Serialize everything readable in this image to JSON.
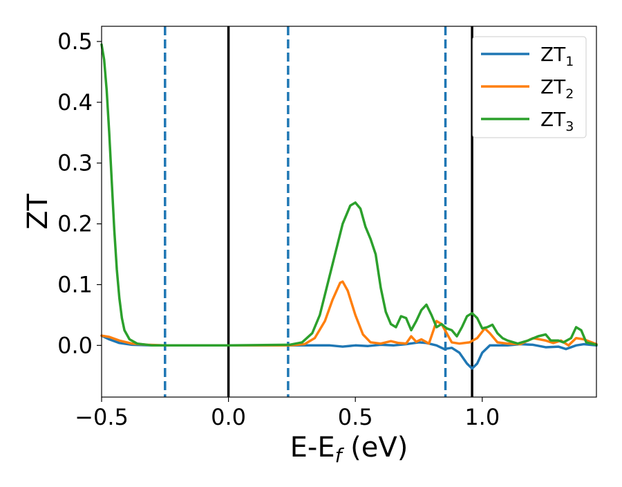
{
  "chart_data": {
    "type": "line",
    "title": "",
    "xlabel": "E-E",
    "xlabel_sub": "f",
    "xlabel_unit": " (eV)",
    "ylabel": "ZT",
    "xlim": [
      -0.5,
      1.45
    ],
    "ylim": [
      -0.085,
      0.525
    ],
    "xticks": [
      -0.5,
      0.0,
      0.5,
      1.0
    ],
    "xtick_labels": [
      "−0.5",
      "0.0",
      "0.5",
      "1.0"
    ],
    "yticks": [
      0.0,
      0.1,
      0.2,
      0.3,
      0.4,
      0.5
    ],
    "ytick_labels": [
      "0.0",
      "0.1",
      "0.2",
      "0.3",
      "0.4",
      "0.5"
    ],
    "grid": false,
    "legend_position": "top-right",
    "vertical_lines": [
      {
        "x": -0.25,
        "style": "dashed",
        "color": "#1f77b4"
      },
      {
        "x": 0.0,
        "style": "solid",
        "color": "#000000"
      },
      {
        "x": 0.235,
        "style": "dashed",
        "color": "#1f77b4"
      },
      {
        "x": 0.855,
        "style": "dashed",
        "color": "#1f77b4"
      },
      {
        "x": 0.96,
        "style": "solid",
        "color": "#000000"
      }
    ],
    "series": [
      {
        "name": "ZT",
        "name_sub": "1",
        "color": "#1f77b4",
        "points": [
          [
            -0.5,
            0.016
          ],
          [
            -0.47,
            0.01
          ],
          [
            -0.43,
            0.004
          ],
          [
            -0.38,
            0.001
          ],
          [
            -0.3,
            0.0
          ],
          [
            0.0,
            0.0
          ],
          [
            0.4,
            0.0
          ],
          [
            0.45,
            -0.002
          ],
          [
            0.5,
            0.0
          ],
          [
            0.55,
            -0.001
          ],
          [
            0.6,
            0.001
          ],
          [
            0.65,
            0.0
          ],
          [
            0.7,
            0.002
          ],
          [
            0.75,
            0.005
          ],
          [
            0.78,
            0.004
          ],
          [
            0.82,
            0.0
          ],
          [
            0.85,
            -0.006
          ],
          [
            0.88,
            -0.004
          ],
          [
            0.91,
            -0.012
          ],
          [
            0.94,
            -0.03
          ],
          [
            0.96,
            -0.038
          ],
          [
            0.98,
            -0.03
          ],
          [
            1.0,
            -0.012
          ],
          [
            1.03,
            0.0
          ],
          [
            1.1,
            0.0
          ],
          [
            1.15,
            0.002
          ],
          [
            1.2,
            0.001
          ],
          [
            1.25,
            -0.003
          ],
          [
            1.3,
            -0.002
          ],
          [
            1.33,
            -0.006
          ],
          [
            1.37,
            0.0
          ],
          [
            1.4,
            0.002
          ],
          [
            1.45,
            0.0
          ]
        ]
      },
      {
        "name": "ZT",
        "name_sub": "2",
        "color": "#ff7f0e",
        "points": [
          [
            -0.5,
            0.016
          ],
          [
            -0.47,
            0.014
          ],
          [
            -0.43,
            0.008
          ],
          [
            -0.38,
            0.003
          ],
          [
            -0.32,
            0.001
          ],
          [
            -0.25,
            0.0
          ],
          [
            0.0,
            0.0
          ],
          [
            0.24,
            0.0
          ],
          [
            0.3,
            0.002
          ],
          [
            0.34,
            0.012
          ],
          [
            0.38,
            0.04
          ],
          [
            0.41,
            0.075
          ],
          [
            0.44,
            0.103
          ],
          [
            0.45,
            0.105
          ],
          [
            0.47,
            0.09
          ],
          [
            0.5,
            0.05
          ],
          [
            0.53,
            0.018
          ],
          [
            0.56,
            0.005
          ],
          [
            0.6,
            0.003
          ],
          [
            0.64,
            0.007
          ],
          [
            0.67,
            0.004
          ],
          [
            0.7,
            0.003
          ],
          [
            0.72,
            0.015
          ],
          [
            0.74,
            0.006
          ],
          [
            0.76,
            0.01
          ],
          [
            0.79,
            0.003
          ],
          [
            0.82,
            0.04
          ],
          [
            0.84,
            0.035
          ],
          [
            0.86,
            0.02
          ],
          [
            0.88,
            0.005
          ],
          [
            0.91,
            0.003
          ],
          [
            0.95,
            0.005
          ],
          [
            0.98,
            0.012
          ],
          [
            1.01,
            0.028
          ],
          [
            1.03,
            0.02
          ],
          [
            1.06,
            0.005
          ],
          [
            1.1,
            0.003
          ],
          [
            1.15,
            0.002
          ],
          [
            1.2,
            0.012
          ],
          [
            1.25,
            0.008
          ],
          [
            1.28,
            0.004
          ],
          [
            1.31,
            0.008
          ],
          [
            1.34,
            0.0
          ],
          [
            1.37,
            0.012
          ],
          [
            1.4,
            0.01
          ],
          [
            1.45,
            0.002
          ]
        ]
      },
      {
        "name": "ZT",
        "name_sub": "3",
        "color": "#2ca02c",
        "points": [
          [
            -0.5,
            0.495
          ],
          [
            -0.49,
            0.47
          ],
          [
            -0.48,
            0.42
          ],
          [
            -0.47,
            0.35
          ],
          [
            -0.46,
            0.27
          ],
          [
            -0.45,
            0.19
          ],
          [
            -0.44,
            0.125
          ],
          [
            -0.43,
            0.078
          ],
          [
            -0.42,
            0.045
          ],
          [
            -0.41,
            0.025
          ],
          [
            -0.39,
            0.01
          ],
          [
            -0.36,
            0.003
          ],
          [
            -0.3,
            0.0
          ],
          [
            0.0,
            0.0
          ],
          [
            0.24,
            0.001
          ],
          [
            0.29,
            0.005
          ],
          [
            0.33,
            0.02
          ],
          [
            0.36,
            0.05
          ],
          [
            0.39,
            0.1
          ],
          [
            0.42,
            0.15
          ],
          [
            0.45,
            0.2
          ],
          [
            0.48,
            0.23
          ],
          [
            0.5,
            0.235
          ],
          [
            0.52,
            0.225
          ],
          [
            0.54,
            0.195
          ],
          [
            0.56,
            0.175
          ],
          [
            0.58,
            0.15
          ],
          [
            0.6,
            0.095
          ],
          [
            0.62,
            0.055
          ],
          [
            0.64,
            0.035
          ],
          [
            0.66,
            0.03
          ],
          [
            0.68,
            0.048
          ],
          [
            0.7,
            0.045
          ],
          [
            0.72,
            0.025
          ],
          [
            0.74,
            0.04
          ],
          [
            0.76,
            0.058
          ],
          [
            0.78,
            0.067
          ],
          [
            0.8,
            0.05
          ],
          [
            0.82,
            0.03
          ],
          [
            0.84,
            0.035
          ],
          [
            0.86,
            0.028
          ],
          [
            0.88,
            0.025
          ],
          [
            0.9,
            0.015
          ],
          [
            0.92,
            0.03
          ],
          [
            0.94,
            0.048
          ],
          [
            0.96,
            0.053
          ],
          [
            0.98,
            0.045
          ],
          [
            1.0,
            0.028
          ],
          [
            1.02,
            0.03
          ],
          [
            1.04,
            0.034
          ],
          [
            1.06,
            0.02
          ],
          [
            1.08,
            0.012
          ],
          [
            1.1,
            0.008
          ],
          [
            1.14,
            0.003
          ],
          [
            1.18,
            0.008
          ],
          [
            1.22,
            0.015
          ],
          [
            1.25,
            0.018
          ],
          [
            1.27,
            0.008
          ],
          [
            1.3,
            0.008
          ],
          [
            1.32,
            0.005
          ],
          [
            1.35,
            0.012
          ],
          [
            1.37,
            0.03
          ],
          [
            1.39,
            0.025
          ],
          [
            1.41,
            0.005
          ],
          [
            1.45,
            0.001
          ]
        ]
      }
    ]
  }
}
